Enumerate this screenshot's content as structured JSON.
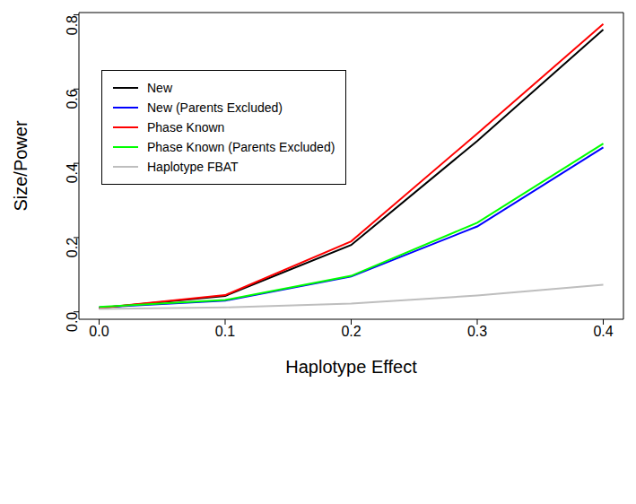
{
  "chart_data": {
    "type": "line",
    "x_label": "Haplotype Effect",
    "y_label": "Size/Power",
    "x": [
      0,
      0.1,
      0.2,
      0.3,
      0.4
    ],
    "xlim": [
      -0.016,
      0.416
    ],
    "xticks": [
      {
        "value": 0,
        "label": "0.0"
      },
      0.1,
      0.2,
      0.3,
      0.4
    ],
    "ylim": [
      -0.02,
      0.806
    ],
    "yticks": [
      {
        "value": 0,
        "label": "0.0"
      },
      0.2,
      0.4,
      0.6,
      0.8
    ],
    "grid": false,
    "legend": "upper left",
    "series": [
      {
        "name": "New",
        "color": "#000000",
        "values": [
          0.01,
          0.043,
          0.18,
          0.46,
          0.76
        ]
      },
      {
        "name": "New (Parents Excluded)",
        "color": "#0000ff",
        "values": [
          0.012,
          0.03,
          0.095,
          0.23,
          0.443
        ]
      },
      {
        "name": "Phase Known",
        "color": "#ff0000",
        "values": [
          0.01,
          0.045,
          0.19,
          0.48,
          0.775
        ]
      },
      {
        "name": "Phase Known (Parents Excluded)",
        "color": "#00ff00",
        "values": [
          0.013,
          0.032,
          0.097,
          0.24,
          0.453
        ]
      },
      {
        "name": "Haplotype FBAT",
        "color": "#bebebe",
        "values": [
          0.008,
          0.012,
          0.022,
          0.044,
          0.073
        ]
      }
    ]
  }
}
